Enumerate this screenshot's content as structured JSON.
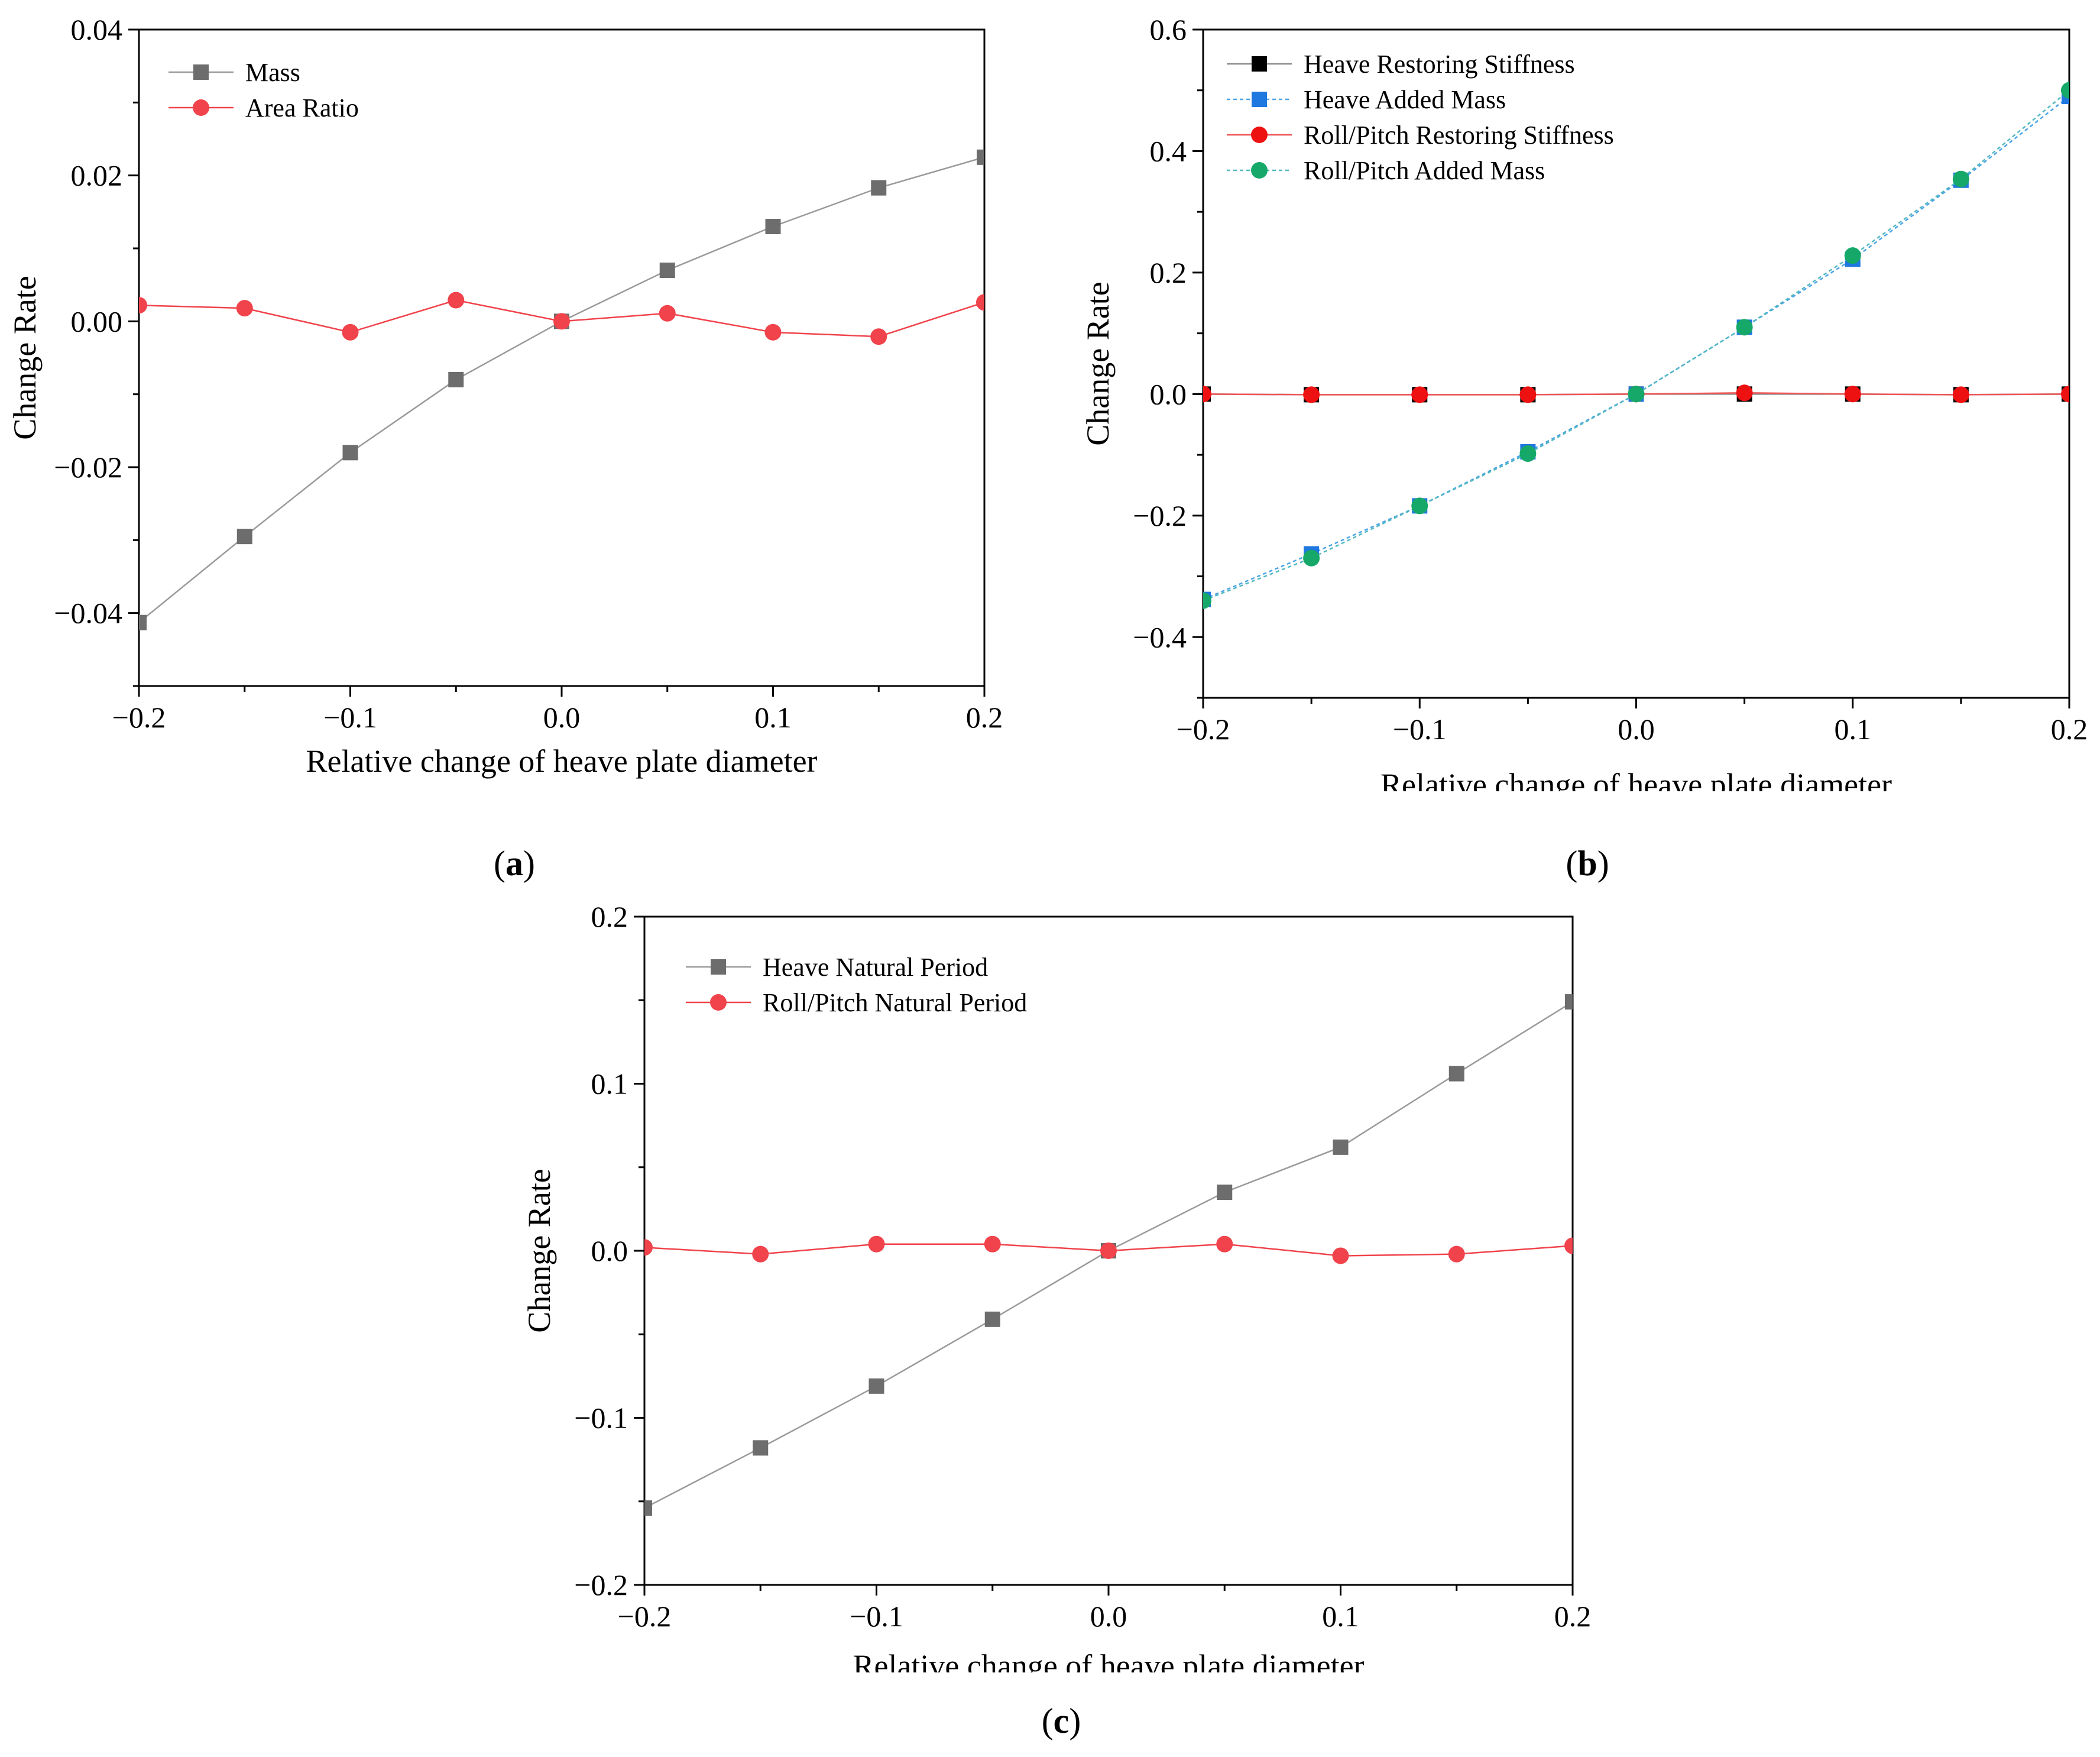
{
  "panel_labels": {
    "a": "a",
    "b": "b",
    "c": "c"
  },
  "chart_data": [
    {
      "id": "a",
      "type": "line",
      "xlabel": "Relative change of heave plate diameter",
      "ylabel": "Change Rate",
      "xlim": [
        -0.2,
        0.2
      ],
      "ylim": [
        -0.05,
        0.04
      ],
      "xticks": [
        -0.2,
        -0.1,
        0.0,
        0.1,
        0.2
      ],
      "xtick_labels": [
        "−0.2",
        "−0.1",
        "0.0",
        "0.1",
        "0.2"
      ],
      "yticks": [
        -0.04,
        -0.02,
        0.0,
        0.02,
        0.04
      ],
      "ytick_labels": [
        "−0.04",
        "−0.02",
        "0.00",
        "0.02",
        "0.04"
      ],
      "legend_position": "top-left",
      "grid": false,
      "x": [
        -0.2,
        -0.15,
        -0.1,
        -0.05,
        0.0,
        0.05,
        0.1,
        0.15,
        0.2
      ],
      "series": [
        {
          "name": "Mass",
          "marker": "square",
          "color": "#6d6d6d",
          "line_color": "#9a9a9a",
          "dashed": false,
          "values": [
            -0.0413,
            -0.0295,
            -0.018,
            -0.008,
            0.0,
            0.007,
            0.013,
            0.0183,
            0.0225
          ]
        },
        {
          "name": "Area Ratio",
          "marker": "circle",
          "color": "#f0434b",
          "line_color": "#f0434b",
          "dashed": false,
          "values": [
            0.0022,
            0.0018,
            -0.0015,
            0.0029,
            0.0,
            0.0011,
            -0.0015,
            -0.0021,
            0.0026
          ]
        }
      ]
    },
    {
      "id": "b",
      "type": "line",
      "xlabel": "Relative change of heave plate diameter",
      "ylabel": "Change Rate",
      "xlim": [
        -0.2,
        0.2
      ],
      "ylim": [
        -0.5,
        0.6
      ],
      "xticks": [
        -0.2,
        -0.1,
        0.0,
        0.1,
        0.2
      ],
      "xtick_labels": [
        "−0.2",
        "−0.1",
        "0.0",
        "0.1",
        "0.2"
      ],
      "yticks": [
        -0.4,
        -0.2,
        0.0,
        0.2,
        0.4,
        0.6
      ],
      "ytick_labels": [
        "−0.4",
        "−0.2",
        "0.0",
        "0.2",
        "0.4",
        "0.6"
      ],
      "legend_position": "top-left",
      "grid": false,
      "x": [
        -0.2,
        -0.15,
        -0.1,
        -0.05,
        0.0,
        0.05,
        0.1,
        0.15,
        0.2
      ],
      "series": [
        {
          "name": "Heave Restoring Stiffness",
          "marker": "square",
          "color": "#000000",
          "line_color": "#8a8a8a",
          "dashed": false,
          "values": [
            0.0,
            -0.001,
            -0.001,
            -0.001,
            0.0,
            0.0,
            0.0,
            -0.001,
            0.0
          ]
        },
        {
          "name": "Heave Added Mass",
          "marker": "square",
          "color": "#1f77e0",
          "line_color": "#4aa3e8",
          "dashed": true,
          "values": [
            -0.338,
            -0.263,
            -0.184,
            -0.095,
            0.0,
            0.11,
            0.222,
            0.352,
            0.49
          ]
        },
        {
          "name": "Roll/Pitch Restoring Stiffness",
          "marker": "circle",
          "color": "#ee1111",
          "line_color": "#ee5555",
          "dashed": false,
          "values": [
            0.0,
            -0.001,
            -0.001,
            -0.001,
            0.0,
            0.002,
            0.0,
            -0.001,
            0.0
          ]
        },
        {
          "name": "Roll/Pitch Added Mass",
          "marker": "circle",
          "color": "#16a869",
          "line_color": "#52b8c0",
          "dashed": true,
          "values": [
            -0.34,
            -0.27,
            -0.184,
            -0.098,
            0.0,
            0.11,
            0.228,
            0.354,
            0.5
          ]
        }
      ]
    },
    {
      "id": "c",
      "type": "line",
      "xlabel": "Relative change of heave plate diameter",
      "ylabel": "Change Rate",
      "xlim": [
        -0.2,
        0.2
      ],
      "ylim": [
        -0.2,
        0.2
      ],
      "xticks": [
        -0.2,
        -0.1,
        0.0,
        0.1,
        0.2
      ],
      "xtick_labels": [
        "−0.2",
        "−0.1",
        "0.0",
        "0.1",
        "0.2"
      ],
      "yticks": [
        -0.2,
        -0.1,
        0.0,
        0.1,
        0.2
      ],
      "ytick_labels": [
        "−0.2",
        "−0.1",
        "0.0",
        "0.1",
        "0.2"
      ],
      "legend_position": "top-left",
      "grid": false,
      "x": [
        -0.2,
        -0.15,
        -0.1,
        -0.05,
        0.0,
        0.05,
        0.1,
        0.15,
        0.2
      ],
      "series": [
        {
          "name": "Heave Natural Period",
          "marker": "square",
          "color": "#6d6d6d",
          "line_color": "#9a9a9a",
          "dashed": false,
          "values": [
            -0.154,
            -0.118,
            -0.081,
            -0.041,
            0.0,
            0.035,
            0.062,
            0.106,
            0.149
          ]
        },
        {
          "name": "Roll/Pitch Natural Period",
          "marker": "circle",
          "color": "#f0434b",
          "line_color": "#f0434b",
          "dashed": false,
          "values": [
            0.002,
            -0.002,
            0.004,
            0.004,
            0.0,
            0.004,
            -0.003,
            -0.002,
            0.003
          ]
        }
      ]
    }
  ]
}
